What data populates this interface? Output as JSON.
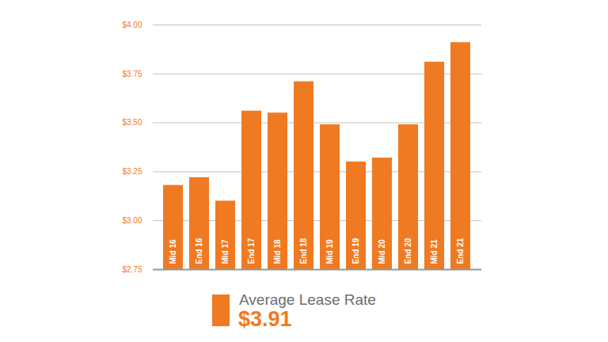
{
  "chart_data": {
    "type": "bar",
    "categories": [
      "Mid 16",
      "End 16",
      "Mid 17",
      "End 17",
      "Mid 18",
      "End 18",
      "Mid 19",
      "End 19",
      "Mid 20",
      "End 20",
      "Mid 21",
      "End 21"
    ],
    "series": [
      {
        "name": "Average Lease Rate",
        "color": "#f07a22",
        "values": [
          3.18,
          3.22,
          3.1,
          3.56,
          3.55,
          3.71,
          3.49,
          3.3,
          3.32,
          3.49,
          3.81,
          3.91
        ]
      }
    ],
    "annotation": "$3.91",
    "ylim": [
      2.75,
      4.0
    ],
    "yticks": [
      {
        "value": 2.75,
        "label": "$2.75"
      },
      {
        "value": 3.0,
        "label": "$3.00"
      },
      {
        "value": 3.25,
        "label": "$3.25"
      },
      {
        "value": 3.5,
        "label": "$3.50"
      },
      {
        "value": 3.75,
        "label": "$3.75"
      },
      {
        "value": 4.0,
        "label": "$4.00"
      }
    ],
    "grid": true,
    "legend": "bottom",
    "tick_labels": "y"
  }
}
